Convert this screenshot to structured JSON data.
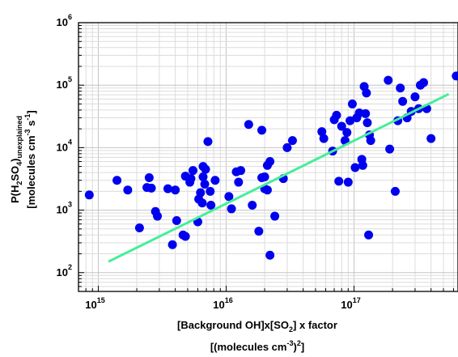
{
  "chart_data": {
    "type": "scatter",
    "title": "",
    "xscale": "log",
    "yscale": "log",
    "xlim": [
      700000000000000.0,
      6.5e+17
    ],
    "ylim": [
      50,
      1000000.0
    ],
    "grid": true,
    "x_ticks": [
      {
        "base": "10",
        "exp": "15",
        "value": 1000000000000000.0
      },
      {
        "base": "10",
        "exp": "16",
        "value": 1e+16
      },
      {
        "base": "10",
        "exp": "17",
        "value": 1e+17
      }
    ],
    "y_ticks": [
      {
        "base": "10",
        "exp": "2",
        "value": 100.0
      },
      {
        "base": "10",
        "exp": "3",
        "value": 1000.0
      },
      {
        "base": "10",
        "exp": "4",
        "value": 10000.0
      },
      {
        "base": "10",
        "exp": "5",
        "value": 100000.0
      },
      {
        "base": "10",
        "exp": "6",
        "value": 1000000.0
      }
    ],
    "xlabel": {
      "line1": {
        "a": "[Background OH]x[SO",
        "a_sub": "2",
        "b": "] x factor"
      },
      "line2": {
        "a": "[(molecules cm",
        "a_sup": "-3",
        "b": ")",
        "b_sup": "2",
        "c": "]"
      }
    },
    "ylabel": {
      "line1": {
        "a": "P(H",
        "s1": "2",
        "b": "SO",
        "s2": "4",
        "c": ")",
        "s3": "unexplained"
      },
      "line2": {
        "a": "[molecules cm",
        "sup1": "-3",
        "b": " s",
        "sup2": "-1",
        "c": "]"
      }
    },
    "colors": {
      "points": "#0000ee",
      "fit": "#44ee99"
    },
    "fit_line": {
      "x": [
        1200000000000000.0,
        5.5e+17
      ],
      "y": [
        150,
        72000
      ]
    },
    "series": [
      {
        "points": [
          [
            850000000000000.0,
            1750
          ],
          [
            1400000000000000.0,
            3000
          ],
          [
            1700000000000000.0,
            2100
          ],
          [
            2100000000000000.0,
            520
          ],
          [
            2400000000000000.0,
            2300
          ],
          [
            2500000000000000.0,
            3300
          ],
          [
            2600000000000000.0,
            2250
          ],
          [
            2800000000000000.0,
            950
          ],
          [
            2900000000000000.0,
            800
          ],
          [
            3500000000000000.0,
            2200
          ],
          [
            3800000000000000.0,
            280
          ],
          [
            4000000000000000.0,
            2100
          ],
          [
            4100000000000000.0,
            680
          ],
          [
            4600000000000000.0,
            400
          ],
          [
            4800000000000000.0,
            380
          ],
          [
            4800000000000000.0,
            3500
          ],
          [
            5200000000000000.0,
            2800
          ],
          [
            5300000000000000.0,
            3200
          ],
          [
            5500000000000000.0,
            4300
          ],
          [
            6000000000000000.0,
            650
          ],
          [
            6100000000000000.0,
            1500
          ],
          [
            6300000000000000.0,
            1900
          ],
          [
            6500000000000000.0,
            1300
          ],
          [
            6600000000000000.0,
            3400
          ],
          [
            6600000000000000.0,
            5000
          ],
          [
            6800000000000000.0,
            2600
          ],
          [
            6900000000000000.0,
            4500
          ],
          [
            7200000000000000.0,
            12500
          ],
          [
            7500000000000000.0,
            2000
          ],
          [
            7600000000000000.0,
            1200
          ],
          [
            8200000000000000.0,
            3000
          ],
          [
            1.05e+16,
            1650
          ],
          [
            1.1e+16,
            1050
          ],
          [
            1.2e+16,
            4100
          ],
          [
            1.25e+16,
            2800
          ],
          [
            1.3e+16,
            4300
          ],
          [
            1.5e+16,
            23500
          ],
          [
            1.6e+16,
            1200
          ],
          [
            1.8e+16,
            460
          ],
          [
            1.9e+16,
            19000
          ],
          [
            1.9e+16,
            3300
          ],
          [
            2e+16,
            3400
          ],
          [
            2e+16,
            2200
          ],
          [
            2.1e+16,
            2100
          ],
          [
            2.1e+16,
            5200
          ],
          [
            2.2e+16,
            6000
          ],
          [
            2.2e+16,
            190
          ],
          [
            2.4e+16,
            800
          ],
          [
            2.8e+16,
            3200
          ],
          [
            3e+16,
            10000
          ],
          [
            3.3e+16,
            13000
          ],
          [
            5.6e+16,
            18000
          ],
          [
            5.8e+16,
            14000
          ],
          [
            6.8e+16,
            8800
          ],
          [
            7e+16,
            28000
          ],
          [
            7.3e+16,
            33000
          ],
          [
            7.6e+16,
            2900
          ],
          [
            8e+16,
            22000
          ],
          [
            8.5e+16,
            13000
          ],
          [
            8.8e+16,
            17500
          ],
          [
            9e+16,
            2800
          ],
          [
            9.3e+16,
            27000
          ],
          [
            9.7e+16,
            50000
          ],
          [
            1.02e+17,
            4800
          ],
          [
            1.05e+17,
            30000
          ],
          [
            1.1e+17,
            36000
          ],
          [
            1.15e+17,
            6500
          ],
          [
            1.17e+17,
            5200
          ],
          [
            1.2e+17,
            95000
          ],
          [
            1.23e+17,
            35000
          ],
          [
            1.25e+17,
            75000
          ],
          [
            1.27e+17,
            25000
          ],
          [
            1.3e+17,
            400
          ],
          [
            1.32e+17,
            16000
          ],
          [
            1.35e+17,
            13000
          ],
          [
            1.85e+17,
            120000
          ],
          [
            1.9e+17,
            9500
          ],
          [
            2.1e+17,
            2000
          ],
          [
            2.2e+17,
            27000
          ],
          [
            2.3e+17,
            90000
          ],
          [
            2.4e+17,
            55000
          ],
          [
            2.6e+17,
            30000
          ],
          [
            2.8e+17,
            38000
          ],
          [
            3e+17,
            65000
          ],
          [
            3.2e+17,
            42000
          ],
          [
            3.3e+17,
            100000
          ],
          [
            3.5e+17,
            110000
          ],
          [
            3.7e+17,
            42000
          ],
          [
            4e+17,
            14000
          ],
          [
            6.3e+17,
            140000
          ]
        ]
      }
    ]
  }
}
